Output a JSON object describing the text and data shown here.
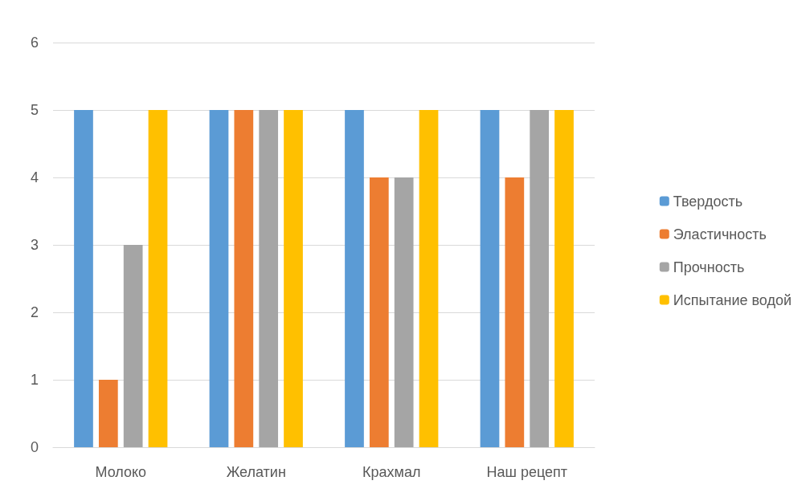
{
  "chart_data": {
    "type": "bar",
    "categories": [
      "Молоко",
      "Желатин",
      "Крахмал",
      "Наш рецепт"
    ],
    "series": [
      {
        "name": "Твердость",
        "color": "#5b9bd5",
        "values": [
          5,
          5,
          5,
          5
        ]
      },
      {
        "name": "Эластичность",
        "color": "#ed7d31",
        "values": [
          1,
          5,
          4,
          4
        ]
      },
      {
        "name": "Прочность",
        "color": "#a5a5a5",
        "values": [
          3,
          5,
          4,
          5
        ]
      },
      {
        "name": "Испытание водой",
        "color": "#ffc000",
        "values": [
          5,
          5,
          5,
          5
        ]
      }
    ],
    "ylim": [
      0,
      6
    ],
    "yticks": [
      0,
      1,
      2,
      3,
      4,
      5,
      6
    ],
    "grid": "y",
    "legend": "right"
  }
}
